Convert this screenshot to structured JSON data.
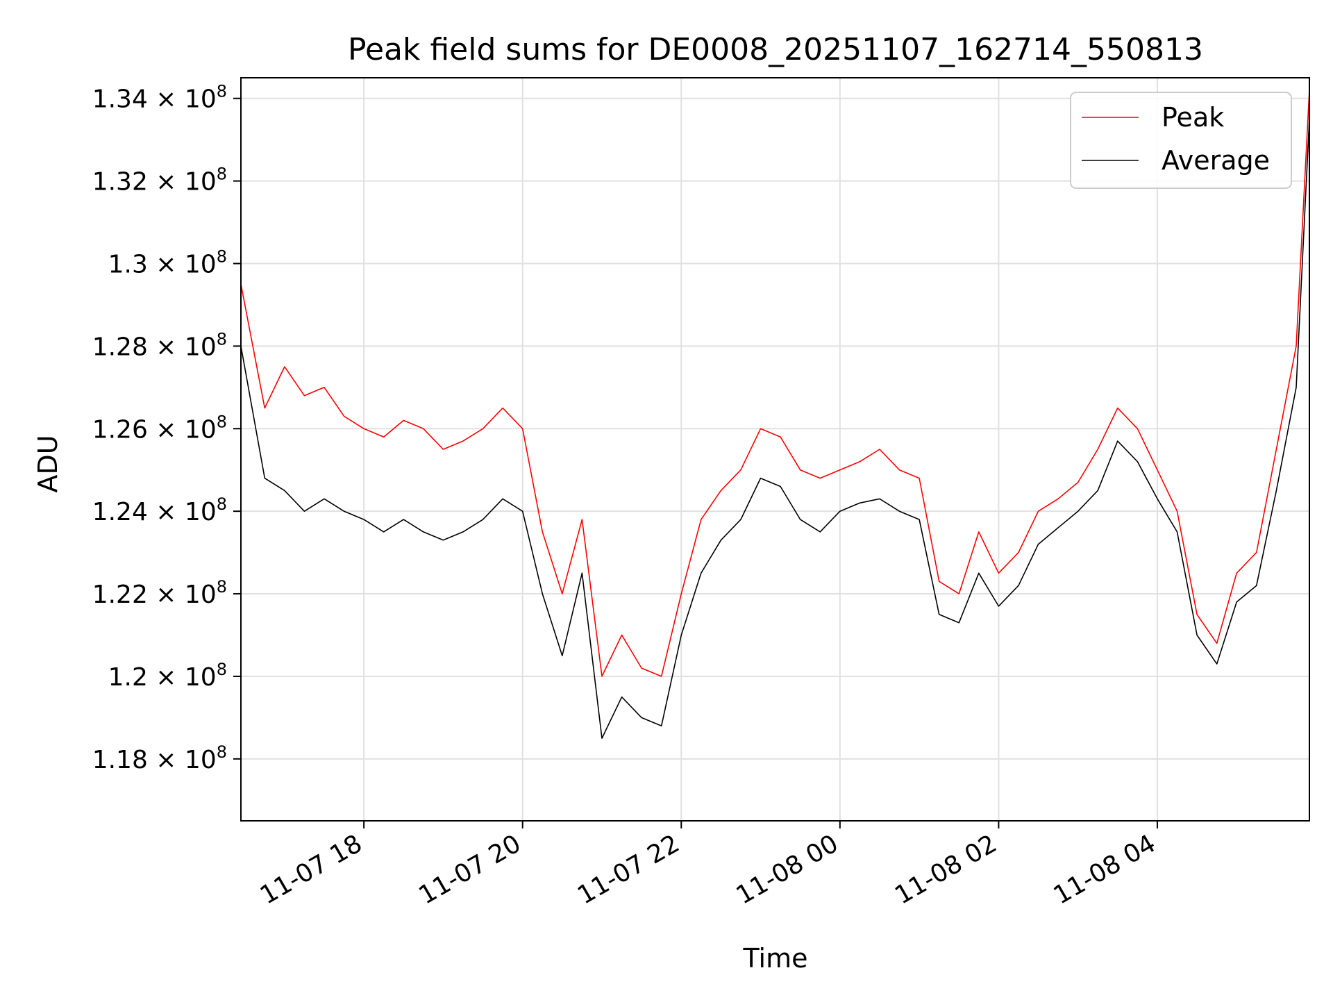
{
  "chart_data": {
    "type": "line",
    "title": "Peak field sums for DE0008_20251107_162714_550813",
    "xlabel": "Time",
    "ylabel": "ADU",
    "x_type": "datetime",
    "xlim": [
      "2025-11-07 16:27",
      "2025-11-08 05:55"
    ],
    "ylim": [
      116500000,
      134500000
    ],
    "grid": true,
    "legend_position": "top-right",
    "x_ticks": [
      {
        "value": "2025-11-07 18:00",
        "label": "11-07 18"
      },
      {
        "value": "2025-11-07 20:00",
        "label": "11-07 20"
      },
      {
        "value": "2025-11-07 22:00",
        "label": "11-07 22"
      },
      {
        "value": "2025-11-08 00:00",
        "label": "11-08 00"
      },
      {
        "value": "2025-11-08 02:00",
        "label": "11-08 02"
      },
      {
        "value": "2025-11-08 04:00",
        "label": "11-08 04"
      }
    ],
    "y_ticks": [
      {
        "value": 118000000,
        "mantissa": "1.18",
        "exp": "8"
      },
      {
        "value": 120000000,
        "mantissa": "1.2",
        "exp": "8"
      },
      {
        "value": 122000000,
        "mantissa": "1.22",
        "exp": "8"
      },
      {
        "value": 124000000,
        "mantissa": "1.24",
        "exp": "8"
      },
      {
        "value": 126000000,
        "mantissa": "1.26",
        "exp": "8"
      },
      {
        "value": 128000000,
        "mantissa": "1.28",
        "exp": "8"
      },
      {
        "value": 130000000,
        "mantissa": "1.3",
        "exp": "8"
      },
      {
        "value": 132000000,
        "mantissa": "1.32",
        "exp": "8"
      },
      {
        "value": 134000000,
        "mantissa": "1.34",
        "exp": "8"
      }
    ],
    "series": [
      {
        "name": "Peak",
        "color": "#ff0000",
        "x": [
          "2025-11-07 16:27",
          "2025-11-07 16:45",
          "2025-11-07 17:00",
          "2025-11-07 17:15",
          "2025-11-07 17:30",
          "2025-11-07 17:45",
          "2025-11-07 18:00",
          "2025-11-07 18:15",
          "2025-11-07 18:30",
          "2025-11-07 18:45",
          "2025-11-07 19:00",
          "2025-11-07 19:15",
          "2025-11-07 19:30",
          "2025-11-07 19:45",
          "2025-11-07 20:00",
          "2025-11-07 20:15",
          "2025-11-07 20:30",
          "2025-11-07 20:45",
          "2025-11-07 21:00",
          "2025-11-07 21:15",
          "2025-11-07 21:30",
          "2025-11-07 21:45",
          "2025-11-07 22:00",
          "2025-11-07 22:15",
          "2025-11-07 22:30",
          "2025-11-07 22:45",
          "2025-11-07 23:00",
          "2025-11-07 23:15",
          "2025-11-07 23:30",
          "2025-11-07 23:45",
          "2025-11-08 00:00",
          "2025-11-08 00:15",
          "2025-11-08 00:30",
          "2025-11-08 00:45",
          "2025-11-08 01:00",
          "2025-11-08 01:15",
          "2025-11-08 01:30",
          "2025-11-08 01:45",
          "2025-11-08 02:00",
          "2025-11-08 02:15",
          "2025-11-08 02:30",
          "2025-11-08 02:45",
          "2025-11-08 03:00",
          "2025-11-08 03:15",
          "2025-11-08 03:30",
          "2025-11-08 03:45",
          "2025-11-08 04:00",
          "2025-11-08 04:15",
          "2025-11-08 04:30",
          "2025-11-08 04:45",
          "2025-11-08 05:00",
          "2025-11-08 05:15",
          "2025-11-08 05:30",
          "2025-11-08 05:45",
          "2025-11-08 05:55"
        ],
        "y": [
          129500000,
          126500000,
          127500000,
          126800000,
          127000000,
          126300000,
          126000000,
          125800000,
          126200000,
          126000000,
          125500000,
          125700000,
          126000000,
          126500000,
          126000000,
          123500000,
          122000000,
          123800000,
          120000000,
          121000000,
          120200000,
          120000000,
          122000000,
          123800000,
          124500000,
          125000000,
          126000000,
          125800000,
          125000000,
          124800000,
          125000000,
          125200000,
          125500000,
          125000000,
          124800000,
          122300000,
          122000000,
          123500000,
          122500000,
          123000000,
          124000000,
          124300000,
          124700000,
          125500000,
          126500000,
          126000000,
          125000000,
          124000000,
          121500000,
          120800000,
          122500000,
          123000000,
          125500000,
          128000000,
          134200000
        ]
      },
      {
        "name": "Average",
        "color": "#000000",
        "x": [
          "2025-11-07 16:27",
          "2025-11-07 16:45",
          "2025-11-07 17:00",
          "2025-11-07 17:15",
          "2025-11-07 17:30",
          "2025-11-07 17:45",
          "2025-11-07 18:00",
          "2025-11-07 18:15",
          "2025-11-07 18:30",
          "2025-11-07 18:45",
          "2025-11-07 19:00",
          "2025-11-07 19:15",
          "2025-11-07 19:30",
          "2025-11-07 19:45",
          "2025-11-07 20:00",
          "2025-11-07 20:15",
          "2025-11-07 20:30",
          "2025-11-07 20:45",
          "2025-11-07 21:00",
          "2025-11-07 21:15",
          "2025-11-07 21:30",
          "2025-11-07 21:45",
          "2025-11-07 22:00",
          "2025-11-07 22:15",
          "2025-11-07 22:30",
          "2025-11-07 22:45",
          "2025-11-07 23:00",
          "2025-11-07 23:15",
          "2025-11-07 23:30",
          "2025-11-07 23:45",
          "2025-11-08 00:00",
          "2025-11-08 00:15",
          "2025-11-08 00:30",
          "2025-11-08 00:45",
          "2025-11-08 01:00",
          "2025-11-08 01:15",
          "2025-11-08 01:30",
          "2025-11-08 01:45",
          "2025-11-08 02:00",
          "2025-11-08 02:15",
          "2025-11-08 02:30",
          "2025-11-08 02:45",
          "2025-11-08 03:00",
          "2025-11-08 03:15",
          "2025-11-08 03:30",
          "2025-11-08 03:45",
          "2025-11-08 04:00",
          "2025-11-08 04:15",
          "2025-11-08 04:30",
          "2025-11-08 04:45",
          "2025-11-08 05:00",
          "2025-11-08 05:15",
          "2025-11-08 05:30",
          "2025-11-08 05:45",
          "2025-11-08 05:55"
        ],
        "y": [
          128000000,
          124800000,
          124500000,
          124000000,
          124300000,
          124000000,
          123800000,
          123500000,
          123800000,
          123500000,
          123300000,
          123500000,
          123800000,
          124300000,
          124000000,
          122000000,
          120500000,
          122500000,
          118500000,
          119500000,
          119000000,
          118800000,
          121000000,
          122500000,
          123300000,
          123800000,
          124800000,
          124600000,
          123800000,
          123500000,
          124000000,
          124200000,
          124300000,
          124000000,
          123800000,
          121500000,
          121300000,
          122500000,
          121700000,
          122200000,
          123200000,
          123600000,
          124000000,
          124500000,
          125700000,
          125200000,
          124300000,
          123500000,
          121000000,
          120300000,
          121800000,
          122200000,
          124500000,
          127000000,
          133500000
        ]
      }
    ]
  }
}
